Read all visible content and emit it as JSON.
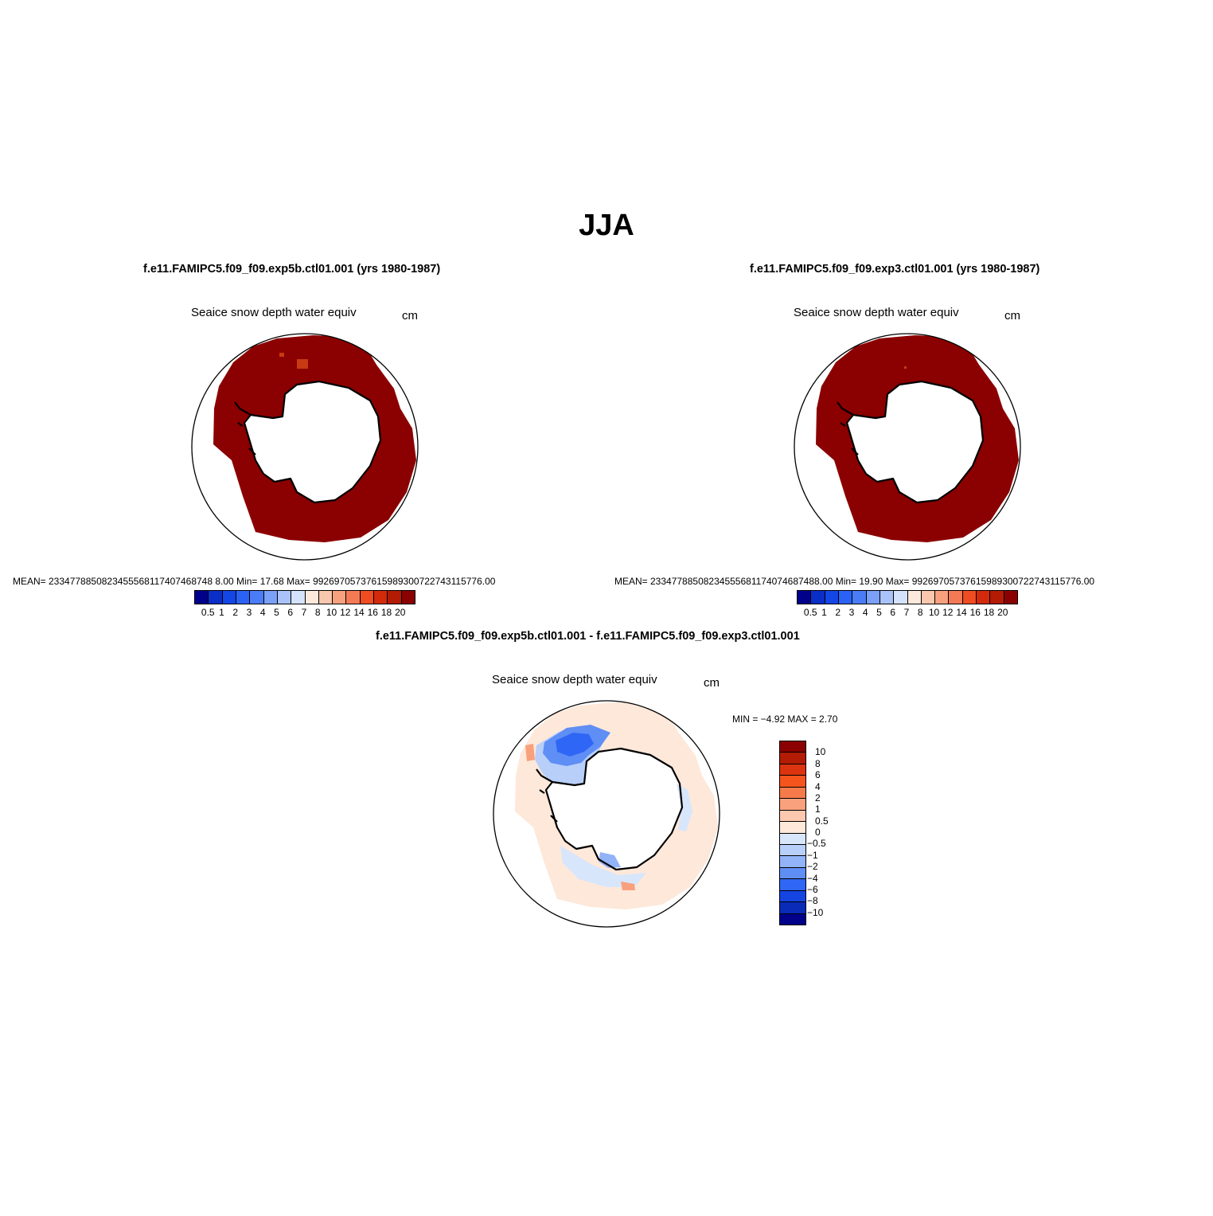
{
  "figure": {
    "title": "JJA"
  },
  "panels": [
    {
      "title": "f.e11.FAMIPC5.f09_f09.exp5b.ctl01.001 (yrs 1980-1987)",
      "variable": "Seaice snow depth water equiv",
      "units": "cm",
      "stats": "MEAN= 2334778850823455568117407468748 8.00   Min=   17.68   Max=  99269705737615989300722743115776.00",
      "field_colors": {
        "ice": "#8b0000",
        "speck": "#c83a12"
      }
    },
    {
      "title": "f.e11.FAMIPC5.f09_f09.exp3.ctl01.001 (yrs 1980-1987)",
      "variable": "Seaice snow depth water equiv",
      "units": "cm",
      "stats": "MEAN= 23347788508234555681174074687488.00   Min=   19.90   Max=  99269705737615989300722743115776.00",
      "field_colors": {
        "ice": "#8b0000",
        "speck": "#c83a12"
      }
    },
    {
      "title": "f.e11.FAMIPC5.f09_f09.exp5b.ctl01.001 - f.e11.FAMIPC5.f09_f09.exp3.ctl01.001",
      "variable": "Seaice snow depth water equiv",
      "units": "cm",
      "minmax": "MIN =   −4.92  MAX =     2.70"
    }
  ],
  "colorbar_abs": {
    "labels": [
      "0.5",
      "1",
      "2",
      "3",
      "4",
      "5",
      "6",
      "7",
      "8",
      "10",
      "12",
      "14",
      "16",
      "18",
      "20"
    ],
    "colors": [
      "#00008b",
      "#0a2ec8",
      "#1446e6",
      "#2a62f5",
      "#4a7cf5",
      "#7aa0f7",
      "#a9c3fa",
      "#d4e2fb",
      "#fce9dc",
      "#f9c7ad",
      "#f7a17f",
      "#f47a55",
      "#ef4c22",
      "#d32a0c",
      "#b31b05",
      "#8b0000"
    ]
  },
  "colorbar_diff": {
    "labels": [
      "10",
      "8",
      "6",
      "4",
      "2",
      "1",
      "0.5",
      "0",
      "−0.5",
      "−1",
      "−2",
      "−4",
      "−6",
      "−8",
      "−10"
    ],
    "colors": [
      "#8b0000",
      "#b31b05",
      "#dc3410",
      "#f5541c",
      "#f77a4a",
      "#f9a07c",
      "#fcc9b0",
      "#fde8da",
      "#d8e6fb",
      "#b8cffa",
      "#92b3f8",
      "#5f8ef5",
      "#2f66f5",
      "#1444e2",
      "#0a2ab8",
      "#00008b"
    ]
  }
}
